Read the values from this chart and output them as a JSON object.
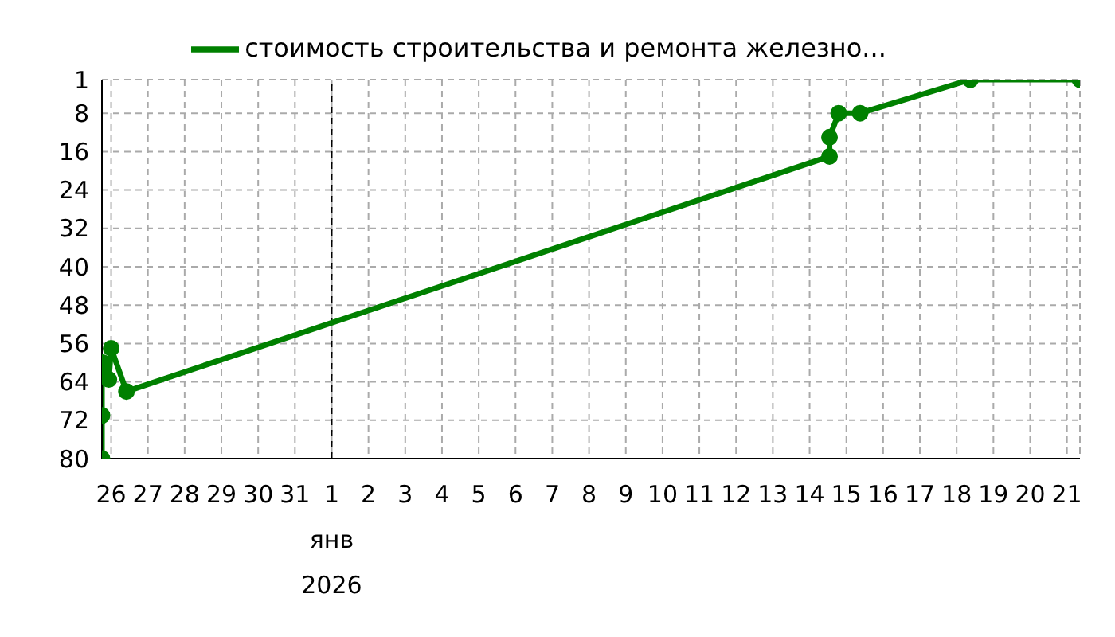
{
  "chart_data": {
    "type": "line",
    "legend": "top",
    "grid": true,
    "marker": "circle",
    "line_style": "solid",
    "xlim": [
      "2025-12-25T18:00",
      "2026-01-21T08:30"
    ],
    "xticks": [
      {
        "value": "2025-12-26",
        "label": "26"
      },
      {
        "value": "2025-12-27",
        "label": "27"
      },
      {
        "value": "2025-12-28",
        "label": "28"
      },
      {
        "value": "2025-12-29",
        "label": "29"
      },
      {
        "value": "2025-12-30",
        "label": "30"
      },
      {
        "value": "2025-12-31",
        "label": "31"
      },
      {
        "value": "2026-01-01",
        "label": "1\nянв\n2026"
      },
      {
        "value": "2026-01-02",
        "label": "2"
      },
      {
        "value": "2026-01-03",
        "label": "3"
      },
      {
        "value": "2026-01-04",
        "label": "4"
      },
      {
        "value": "2026-01-05",
        "label": "5"
      },
      {
        "value": "2026-01-06",
        "label": "6"
      },
      {
        "value": "2026-01-07",
        "label": "7"
      },
      {
        "value": "2026-01-08",
        "label": "8"
      },
      {
        "value": "2026-01-09",
        "label": "9"
      },
      {
        "value": "2026-01-10",
        "label": "10"
      },
      {
        "value": "2026-01-11",
        "label": "11"
      },
      {
        "value": "2026-01-12",
        "label": "12"
      },
      {
        "value": "2026-01-13",
        "label": "13"
      },
      {
        "value": "2026-01-14",
        "label": "14"
      },
      {
        "value": "2026-01-15",
        "label": "15"
      },
      {
        "value": "2026-01-16",
        "label": "16"
      },
      {
        "value": "2026-01-17",
        "label": "17"
      },
      {
        "value": "2026-01-18",
        "label": "18"
      },
      {
        "value": "2026-01-19",
        "label": "19"
      },
      {
        "value": "2026-01-20",
        "label": "20"
      },
      {
        "value": "2026-01-21",
        "label": "21"
      }
    ],
    "ylim": [
      80,
      1
    ],
    "yticks": [
      1,
      8,
      16,
      24,
      32,
      40,
      48,
      56,
      64,
      72,
      80
    ],
    "ref_lines": [
      {
        "axis": "x",
        "value": "2026-01-01",
        "color": "#000000",
        "line_style": "dashed"
      }
    ],
    "x": [
      "2025-12-25T18:00",
      "2025-12-25T18:00",
      "2025-12-25T18:00",
      "2025-12-25T18:30",
      "2025-12-25T22:30",
      "2025-12-26T00:00",
      "2025-12-26T10:00",
      "2026-01-14T13:00",
      "2026-01-14T13:00",
      "2026-01-14T19:00",
      "2026-01-15T09:00",
      "2026-01-18T09:00",
      "2026-01-21T08:30"
    ],
    "series": [
      {
        "name": "стоимость строительства и ремонта железно...",
        "color": "#008000",
        "values": [
          80,
          71,
          62,
          60,
          63.5,
          57,
          66,
          17,
          13,
          8,
          8,
          1,
          1
        ]
      }
    ]
  }
}
